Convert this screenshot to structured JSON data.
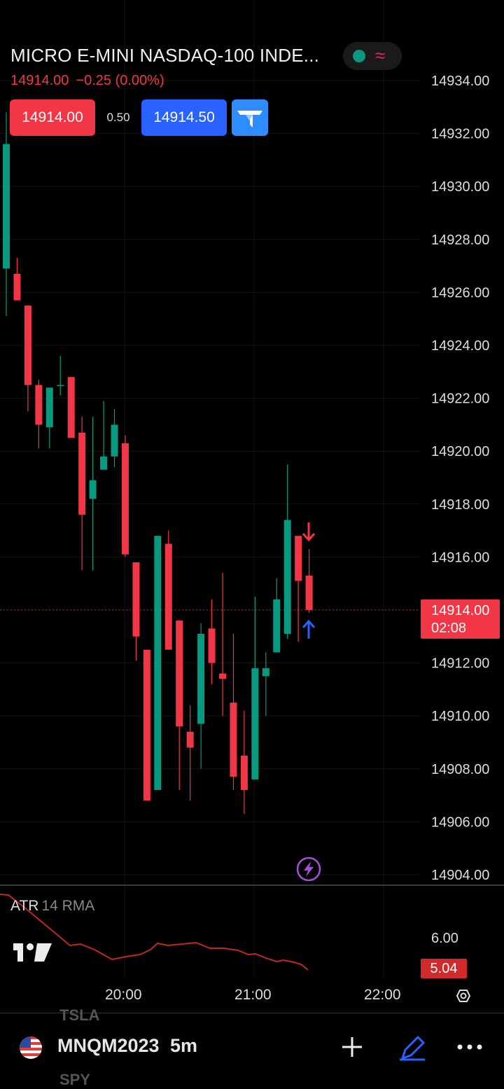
{
  "header": {
    "instrument_title": "MICRO E-MINI NASDAQ-100 INDE...",
    "last_price": "14914.00",
    "change": "−0.25 (0.00%)"
  },
  "trade": {
    "sell_price": "14914.00",
    "spread": "0.50",
    "buy_price": "14914.50"
  },
  "price_tag": {
    "price": "14914.00",
    "countdown": "02:08"
  },
  "indicator": {
    "name": "ATR",
    "params": "14 RMA",
    "value_tag": "5.04",
    "axis_label": "6.00"
  },
  "time_axis": [
    "20:00",
    "21:00",
    "22:00"
  ],
  "bottom_bar": {
    "symbol": "MNQM2023",
    "interval": "5m",
    "ghost_above": "TSLA",
    "ghost_below": "SPY"
  },
  "icons": [
    "toggle-status-icon",
    "wave-icon",
    "tradingview-logo-icon",
    "flash-icon",
    "settings-icon",
    "plus-icon",
    "pen-icon",
    "more-icon",
    "us-flag-icon"
  ],
  "colors": {
    "up": "#089981",
    "down": "#f23645",
    "accent_blue": "#2962ff",
    "atr_line": "#c0281f",
    "flash": "#a64fd6"
  },
  "chart_data": {
    "type": "candlestick",
    "y_axis": {
      "min": 14904,
      "max": 14934,
      "ticks": [
        "14934.00",
        "14932.00",
        "14930.00",
        "14928.00",
        "14926.00",
        "14924.00",
        "14922.00",
        "14920.00",
        "14918.00",
        "14916.00",
        "14914.00",
        "14912.00",
        "14910.00",
        "14908.00",
        "14906.00",
        "14904.00"
      ]
    },
    "interval": "5m",
    "candles": [
      {
        "o": 14926.9,
        "h": 14932.8,
        "l": 14925.1,
        "c": 14931.6
      },
      {
        "o": 14926.7,
        "h": 14927.3,
        "l": 14925.7,
        "c": 14925.7
      },
      {
        "o": 14925.5,
        "h": 14925.5,
        "l": 14921.5,
        "c": 14922.5
      },
      {
        "o": 14922.5,
        "h": 14922.7,
        "l": 14920.1,
        "c": 14921.0
      },
      {
        "o": 14920.9,
        "h": 14922.4,
        "l": 14920.1,
        "c": 14922.4
      },
      {
        "o": 14922.5,
        "h": 14923.6,
        "l": 14922.1,
        "c": 14922.5
      },
      {
        "o": 14922.8,
        "h": 14922.8,
        "l": 14920.5,
        "c": 14920.5
      },
      {
        "o": 14920.7,
        "h": 14921.3,
        "l": 14915.5,
        "c": 14917.6
      },
      {
        "o": 14918.2,
        "h": 14921.3,
        "l": 14915.5,
        "c": 14918.9
      },
      {
        "o": 14919.3,
        "h": 14921.9,
        "l": 14919.3,
        "c": 14919.8
      },
      {
        "o": 14919.8,
        "h": 14921.6,
        "l": 14919.4,
        "c": 14921.0
      },
      {
        "o": 14920.3,
        "h": 14920.6,
        "l": 14916.0,
        "c": 14916.1
      },
      {
        "o": 14915.8,
        "h": 14915.8,
        "l": 14912.1,
        "c": 14913.0
      },
      {
        "o": 14912.5,
        "h": 14912.5,
        "l": 14906.8,
        "c": 14906.8
      },
      {
        "o": 14907.2,
        "h": 14916.8,
        "l": 14907.2,
        "c": 14916.8
      },
      {
        "o": 14916.5,
        "h": 14917.0,
        "l": 14912.5,
        "c": 14912.5
      },
      {
        "o": 14913.6,
        "h": 14913.6,
        "l": 14907.2,
        "c": 14909.6
      },
      {
        "o": 14909.4,
        "h": 14910.4,
        "l": 14906.8,
        "c": 14908.8
      },
      {
        "o": 14909.7,
        "h": 14913.5,
        "l": 14908.0,
        "c": 14913.1
      },
      {
        "o": 14913.3,
        "h": 14914.4,
        "l": 14911.2,
        "c": 14912.0
      },
      {
        "o": 14911.6,
        "h": 14915.4,
        "l": 14910.0,
        "c": 14911.4
      },
      {
        "o": 14910.5,
        "h": 14913.1,
        "l": 14907.2,
        "c": 14907.7
      },
      {
        "o": 14908.5,
        "h": 14910.2,
        "l": 14906.3,
        "c": 14907.2
      },
      {
        "o": 14907.6,
        "h": 14914.5,
        "l": 14907.6,
        "c": 14911.8
      },
      {
        "o": 14911.5,
        "h": 14912.4,
        "l": 14910.0,
        "c": 14911.8
      },
      {
        "o": 14912.4,
        "h": 14915.2,
        "l": 14912.4,
        "c": 14914.4
      },
      {
        "o": 14913.1,
        "h": 14919.5,
        "l": 14912.9,
        "c": 14917.4
      },
      {
        "o": 14916.8,
        "h": 14916.8,
        "l": 14912.8,
        "c": 14915.1
      },
      {
        "o": 14915.3,
        "h": 14916.3,
        "l": 14913.9,
        "c": 14914.0
      }
    ],
    "last_price": 14914.0,
    "atr": {
      "name": "ATR",
      "params": "14 RMA",
      "current": 5.04
    }
  }
}
